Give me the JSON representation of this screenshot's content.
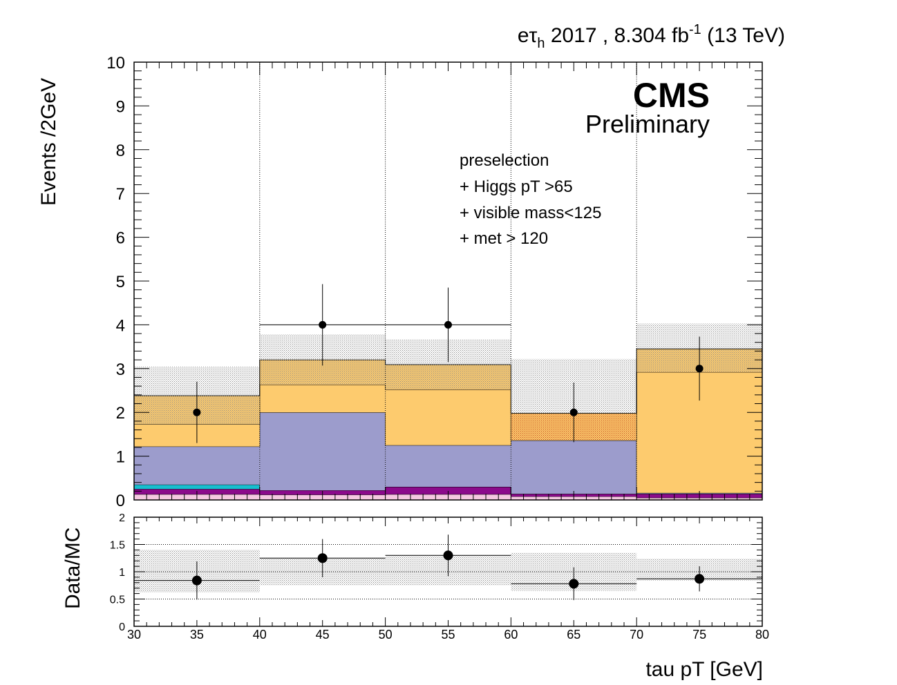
{
  "header": {
    "channel_main": "eτ",
    "channel_sub": "h",
    "year_lumi": "2017 , 8.304 fb",
    "lumi_exp": "-1",
    "energy": "(13 TeV)"
  },
  "labels": {
    "cms": "CMS",
    "preliminary": "Preliminary",
    "selection": [
      "preselection",
      "+ Higgs pT >65",
      "+ visible mass<125",
      "+ met > 120"
    ]
  },
  "colors": {
    "pink": "#f4c8e0",
    "purple": "#8b0a8b",
    "cyan": "#17becf",
    "lavender": "#9c9ccc",
    "orange": "#fdcb6e",
    "orange_hatch": "#d2691e",
    "uncert": "#9a9a9a"
  },
  "chart_data": [
    {
      "type": "bar",
      "stacked": true,
      "xlabel": "tau pT [GeV]",
      "ylabel": "Events /2GeV",
      "xlim": [
        30,
        80
      ],
      "ylim": [
        0,
        10
      ],
      "bin_edges": [
        30,
        40,
        50,
        60,
        70,
        80
      ],
      "x_ticks": [
        "30",
        "35",
        "40",
        "45",
        "50",
        "55",
        "60",
        "65",
        "70",
        "75",
        "80"
      ],
      "y_ticks": [
        "0",
        "1",
        "2",
        "3",
        "4",
        "5",
        "6",
        "7",
        "8",
        "9",
        "10"
      ],
      "grid_x": [
        40,
        50,
        60,
        70
      ],
      "series": [
        {
          "color_key": "pink",
          "values": [
            0.13,
            0.12,
            0.13,
            0.08,
            0.05
          ]
        },
        {
          "color_key": "purple",
          "values": [
            0.12,
            0.1,
            0.17,
            0.06,
            0.09
          ]
        },
        {
          "color_key": "cyan",
          "values": [
            0.1,
            0.0,
            0.0,
            0.0,
            0.0
          ]
        },
        {
          "color_key": "lavender",
          "values": [
            0.87,
            1.78,
            0.95,
            1.22,
            0.02
          ]
        },
        {
          "color_key": "orange",
          "values": [
            0.51,
            0.63,
            1.27,
            0.0,
            2.76
          ]
        },
        {
          "color_key": "orange_hatch",
          "values": [
            0.65,
            0.57,
            0.57,
            0.62,
            0.53
          ]
        }
      ],
      "uncertainty": {
        "up": [
          3.05,
          3.78,
          3.67,
          3.22,
          4.03
        ],
        "down": [
          1.72,
          2.63,
          2.52,
          1.97,
          2.92
        ]
      },
      "data_points": {
        "x": [
          35,
          45,
          55,
          65,
          75
        ],
        "y": [
          2,
          4,
          4,
          2,
          3
        ],
        "err_up": [
          0.7,
          0.93,
          0.85,
          0.68,
          0.73
        ],
        "err_down": [
          0.7,
          0.93,
          0.85,
          0.68,
          0.73
        ],
        "x_err_bins": [
          1,
          2
        ]
      }
    },
    {
      "type": "scatter",
      "ylabel": "Data/MC",
      "xlim": [
        30,
        80
      ],
      "ylim": [
        0,
        2
      ],
      "x_ticks": [
        "30",
        "35",
        "40",
        "45",
        "50",
        "55",
        "60",
        "65",
        "70",
        "75",
        "80"
      ],
      "y_ticks": [
        "0",
        "0.5",
        "1",
        "1.5",
        "2"
      ],
      "grid_y": [
        0.5,
        1,
        1.5
      ],
      "ratio": {
        "x": [
          35,
          45,
          55,
          65,
          75
        ],
        "y": [
          0.84,
          1.25,
          1.3,
          0.78,
          0.87
        ],
        "err": [
          0.35,
          0.35,
          0.38,
          0.3,
          0.23
        ],
        "band_up": [
          1.4,
          1.25,
          1.3,
          1.35,
          1.24
        ],
        "band_down": [
          0.62,
          0.75,
          0.75,
          0.65,
          0.84
        ],
        "line": [
          0.84,
          1.25,
          1.3,
          0.78,
          0.87
        ]
      }
    }
  ]
}
